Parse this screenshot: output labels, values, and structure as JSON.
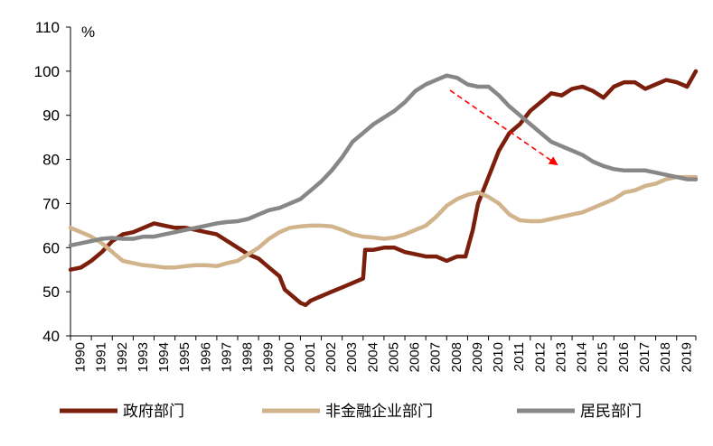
{
  "chart_data": {
    "type": "line",
    "unit": "%",
    "ylim": [
      40,
      110
    ],
    "yticks": [
      40,
      50,
      60,
      70,
      80,
      90,
      100,
      110
    ],
    "xlim": [
      1990,
      2019.92
    ],
    "xticks": [
      "1990",
      "1991",
      "1992",
      "1993",
      "1994",
      "1995",
      "1996",
      "1997",
      "1998",
      "1999",
      "2000",
      "2001",
      "2002",
      "2003",
      "2004",
      "2005",
      "2006",
      "2007",
      "2008",
      "2009",
      "2010",
      "2011",
      "2012",
      "2013",
      "2014",
      "2015",
      "2016",
      "2017",
      "2018",
      "2019"
    ],
    "grid": false,
    "legend_position": "bottom",
    "series": [
      {
        "name": "政府部门",
        "color": "#7b1e0b",
        "points": [
          [
            1990.0,
            55
          ],
          [
            1990.5,
            55.5
          ],
          [
            1991.0,
            57
          ],
          [
            1991.5,
            59
          ],
          [
            1992.0,
            61.5
          ],
          [
            1992.5,
            63
          ],
          [
            1993.0,
            63.5
          ],
          [
            1993.5,
            64.5
          ],
          [
            1994.0,
            65.5
          ],
          [
            1994.5,
            65
          ],
          [
            1995.0,
            64.5
          ],
          [
            1995.5,
            64.5
          ],
          [
            1996.0,
            64
          ],
          [
            1996.5,
            63.5
          ],
          [
            1997.0,
            63
          ],
          [
            1997.5,
            61.5
          ],
          [
            1998.0,
            60
          ],
          [
            1998.5,
            58.5
          ],
          [
            1999.0,
            57.5
          ],
          [
            1999.5,
            55.5
          ],
          [
            2000.0,
            53.5
          ],
          [
            2000.25,
            50.5
          ],
          [
            2000.75,
            48.5
          ],
          [
            2001.0,
            47.5
          ],
          [
            2001.25,
            47
          ],
          [
            2001.5,
            48
          ],
          [
            2002.0,
            49
          ],
          [
            2002.5,
            50
          ],
          [
            2003.0,
            51
          ],
          [
            2003.5,
            52
          ],
          [
            2004.0,
            53
          ],
          [
            2004.1,
            59.5
          ],
          [
            2004.5,
            59.5
          ],
          [
            2005.0,
            60
          ],
          [
            2005.5,
            60
          ],
          [
            2006.0,
            59
          ],
          [
            2006.5,
            58.5
          ],
          [
            2007.0,
            58
          ],
          [
            2007.5,
            58
          ],
          [
            2008.0,
            57
          ],
          [
            2008.5,
            58
          ],
          [
            2008.9,
            58
          ],
          [
            2009.25,
            64
          ],
          [
            2009.5,
            70
          ],
          [
            2010.0,
            76
          ],
          [
            2010.5,
            82
          ],
          [
            2011.0,
            86
          ],
          [
            2011.5,
            88
          ],
          [
            2012.0,
            91
          ],
          [
            2012.5,
            93
          ],
          [
            2013.0,
            95
          ],
          [
            2013.5,
            94.5
          ],
          [
            2014.0,
            96
          ],
          [
            2014.5,
            96.5
          ],
          [
            2015.0,
            95.5
          ],
          [
            2015.5,
            94
          ],
          [
            2016.0,
            96.5
          ],
          [
            2016.5,
            97.5
          ],
          [
            2017.0,
            97.5
          ],
          [
            2017.5,
            96
          ],
          [
            2018.0,
            97
          ],
          [
            2018.5,
            98
          ],
          [
            2019.0,
            97.5
          ],
          [
            2019.5,
            96.5
          ],
          [
            2019.92,
            100
          ]
        ]
      },
      {
        "name": "非金融企业部门",
        "color": "#d2b48c",
        "points": [
          [
            1990.0,
            64.5
          ],
          [
            1990.5,
            63.5
          ],
          [
            1991.0,
            62.5
          ],
          [
            1991.5,
            61
          ],
          [
            1992.0,
            59
          ],
          [
            1992.5,
            57
          ],
          [
            1993.0,
            56.5
          ],
          [
            1993.5,
            56
          ],
          [
            1994.0,
            55.8
          ],
          [
            1994.5,
            55.5
          ],
          [
            1995.0,
            55.5
          ],
          [
            1995.5,
            55.8
          ],
          [
            1996.0,
            56
          ],
          [
            1996.5,
            56
          ],
          [
            1997.0,
            55.8
          ],
          [
            1997.5,
            56.5
          ],
          [
            1998.0,
            57
          ],
          [
            1998.5,
            58.5
          ],
          [
            1999.0,
            60
          ],
          [
            1999.5,
            62
          ],
          [
            2000.0,
            63.5
          ],
          [
            2000.5,
            64.5
          ],
          [
            2001.0,
            64.8
          ],
          [
            2001.5,
            65
          ],
          [
            2002.0,
            65
          ],
          [
            2002.5,
            64.8
          ],
          [
            2003.0,
            64
          ],
          [
            2003.5,
            63
          ],
          [
            2004.0,
            62.5
          ],
          [
            2004.5,
            62.3
          ],
          [
            2005.0,
            62
          ],
          [
            2005.5,
            62.3
          ],
          [
            2006.0,
            63
          ],
          [
            2006.5,
            64
          ],
          [
            2007.0,
            65
          ],
          [
            2007.5,
            67
          ],
          [
            2008.0,
            69.5
          ],
          [
            2008.5,
            71
          ],
          [
            2009.0,
            72
          ],
          [
            2009.5,
            72.5
          ],
          [
            2010.0,
            71.5
          ],
          [
            2010.5,
            70
          ],
          [
            2011.0,
            67.5
          ],
          [
            2011.5,
            66.2
          ],
          [
            2012.0,
            66
          ],
          [
            2012.5,
            66
          ],
          [
            2013.0,
            66.5
          ],
          [
            2013.5,
            67
          ],
          [
            2014.0,
            67.5
          ],
          [
            2014.5,
            68
          ],
          [
            2015.0,
            69
          ],
          [
            2015.5,
            70
          ],
          [
            2016.0,
            71
          ],
          [
            2016.5,
            72.5
          ],
          [
            2017.0,
            73
          ],
          [
            2017.5,
            74
          ],
          [
            2018.0,
            74.5
          ],
          [
            2018.5,
            75.5
          ],
          [
            2019.0,
            76
          ],
          [
            2019.5,
            76
          ],
          [
            2019.92,
            76
          ]
        ]
      },
      {
        "name": "居民部门",
        "color": "#878787",
        "points": [
          [
            1990.0,
            60.5
          ],
          [
            1990.5,
            61
          ],
          [
            1991.0,
            61.5
          ],
          [
            1991.5,
            62
          ],
          [
            1992.0,
            62.2
          ],
          [
            1992.5,
            62
          ],
          [
            1993.0,
            62
          ],
          [
            1993.5,
            62.5
          ],
          [
            1994.0,
            62.5
          ],
          [
            1994.5,
            63
          ],
          [
            1995.0,
            63.5
          ],
          [
            1995.5,
            64
          ],
          [
            1996.0,
            64.5
          ],
          [
            1996.5,
            65
          ],
          [
            1997.0,
            65.5
          ],
          [
            1997.5,
            65.8
          ],
          [
            1998.0,
            66
          ],
          [
            1998.5,
            66.5
          ],
          [
            1999.0,
            67.5
          ],
          [
            1999.5,
            68.5
          ],
          [
            2000.0,
            69
          ],
          [
            2000.5,
            70
          ],
          [
            2001.0,
            71
          ],
          [
            2001.5,
            73
          ],
          [
            2002.0,
            75
          ],
          [
            2002.5,
            77.5
          ],
          [
            2003.0,
            80.5
          ],
          [
            2003.5,
            84
          ],
          [
            2004.0,
            86
          ],
          [
            2004.5,
            88
          ],
          [
            2005.0,
            89.5
          ],
          [
            2005.5,
            91
          ],
          [
            2006.0,
            93
          ],
          [
            2006.5,
            95.5
          ],
          [
            2007.0,
            97
          ],
          [
            2007.5,
            98
          ],
          [
            2008.0,
            99
          ],
          [
            2008.5,
            98.5
          ],
          [
            2009.0,
            97
          ],
          [
            2009.5,
            96.5
          ],
          [
            2010.0,
            96.5
          ],
          [
            2010.5,
            94.5
          ],
          [
            2011.0,
            92
          ],
          [
            2011.5,
            90
          ],
          [
            2012.0,
            88
          ],
          [
            2012.5,
            86
          ],
          [
            2013.0,
            84
          ],
          [
            2013.5,
            83
          ],
          [
            2014.0,
            82
          ],
          [
            2014.5,
            81
          ],
          [
            2015.0,
            79.5
          ],
          [
            2015.5,
            78.5
          ],
          [
            2016.0,
            77.8
          ],
          [
            2016.5,
            77.5
          ],
          [
            2017.0,
            77.5
          ],
          [
            2017.5,
            77.5
          ],
          [
            2018.0,
            77
          ],
          [
            2018.5,
            76.5
          ],
          [
            2019.0,
            76
          ],
          [
            2019.5,
            75.5
          ],
          [
            2019.92,
            75.5
          ]
        ]
      }
    ]
  },
  "annotation": {
    "type": "dashed-arrow",
    "color": "#ff0000"
  }
}
